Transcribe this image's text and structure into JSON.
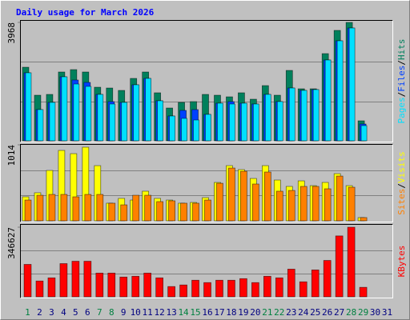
{
  "title": "Daily usage for March 2026",
  "legend_separator": "/",
  "categories": [
    "1",
    "2",
    "3",
    "4",
    "5",
    "6",
    "7",
    "8",
    "9",
    "10",
    "11",
    "12",
    "13",
    "14",
    "15",
    "16",
    "17",
    "18",
    "19",
    "20",
    "21",
    "22",
    "23",
    "24",
    "25",
    "26",
    "27",
    "28",
    "29",
    "30",
    "31"
  ],
  "category_colors": [
    "#008040",
    "#000080",
    "#000080",
    "#000080",
    "#000080",
    "#000080",
    "#008040",
    "#008040",
    "#000080",
    "#000080",
    "#000080",
    "#000080",
    "#000080",
    "#008040",
    "#008040",
    "#000080",
    "#000080",
    "#000080",
    "#000080",
    "#000080",
    "#008040",
    "#008040",
    "#000080",
    "#000080",
    "#000080",
    "#000080",
    "#000080",
    "#008040",
    "#008040",
    "#000080",
    "#000080"
  ],
  "chart_data": [
    {
      "type": "bar",
      "ylim": [
        0,
        3968
      ],
      "yticks": [
        3968
      ],
      "series": [
        {
          "name": "Hits",
          "color": "#00805c",
          "values": [
            2466,
            1528,
            1555,
            2306,
            2386,
            2306,
            1796,
            1769,
            1689,
            2091,
            2306,
            1609,
            1099,
            1287,
            1314,
            1555,
            1528,
            1474,
            1609,
            1394,
            1850,
            1528,
            2359,
            1743,
            1743,
            2922,
            3700,
            3968,
            670,
            0,
            0
          ]
        },
        {
          "name": "Files",
          "color": "#0040ff",
          "values": [
            2279,
            1046,
            1287,
            2145,
            2038,
            1957,
            1555,
            1314,
            1287,
            1877,
            2091,
            1341,
            831,
            1019,
            1046,
            885,
            1260,
            1314,
            1260,
            1233,
            1555,
            1314,
            1769,
            1689,
            1716,
            2708,
            3351,
            3780,
            563,
            0,
            0
          ]
        },
        {
          "name": "Pages",
          "color": "#00e0ff",
          "values": [
            2279,
            1046,
            1287,
            2145,
            1903,
            1823,
            1555,
            1233,
            1287,
            1877,
            2091,
            1341,
            831,
            751,
            697,
            885,
            1260,
            1233,
            1260,
            1233,
            1555,
            1314,
            1769,
            1689,
            1716,
            2708,
            3351,
            3780,
            509,
            0,
            0
          ]
        }
      ]
    },
    {
      "type": "bar",
      "ylim": [
        0,
        1014
      ],
      "yticks": [
        1014
      ],
      "series": [
        {
          "name": "Visits",
          "color": "#ffff00",
          "values": [
            320,
            374,
            672,
            939,
            896,
            982,
            736,
            235,
            299,
            277,
            395,
            299,
            277,
            235,
            245,
            309,
            512,
            736,
            683,
            565,
            736,
            544,
            459,
            533,
            469,
            512,
            629,
            469,
            43,
            0,
            0
          ]
        },
        {
          "name": "Sites",
          "color": "#ff8000",
          "values": [
            277,
            341,
            352,
            352,
            320,
            352,
            352,
            235,
            213,
            341,
            341,
            256,
            267,
            235,
            235,
            277,
            501,
            704,
            661,
            491,
            651,
            395,
            405,
            459,
            459,
            427,
            597,
            448,
            43,
            0,
            0
          ]
        }
      ]
    },
    {
      "type": "bar",
      "ylim": [
        0,
        346627
      ],
      "yticks": [
        346627
      ],
      "series": [
        {
          "name": "KBytes",
          "color": "#ff0000",
          "values": [
            161500,
            78800,
            94500,
            165400,
            177200,
            177200,
            118200,
            118200,
            98500,
            102400,
            118200,
            94500,
            51200,
            59100,
            82700,
            70900,
            82700,
            82700,
            90600,
            70900,
            102400,
            94500,
            137900,
            74800,
            133900,
            181200,
            303300,
            346627,
            47300,
            0,
            0
          ]
        }
      ]
    }
  ]
}
